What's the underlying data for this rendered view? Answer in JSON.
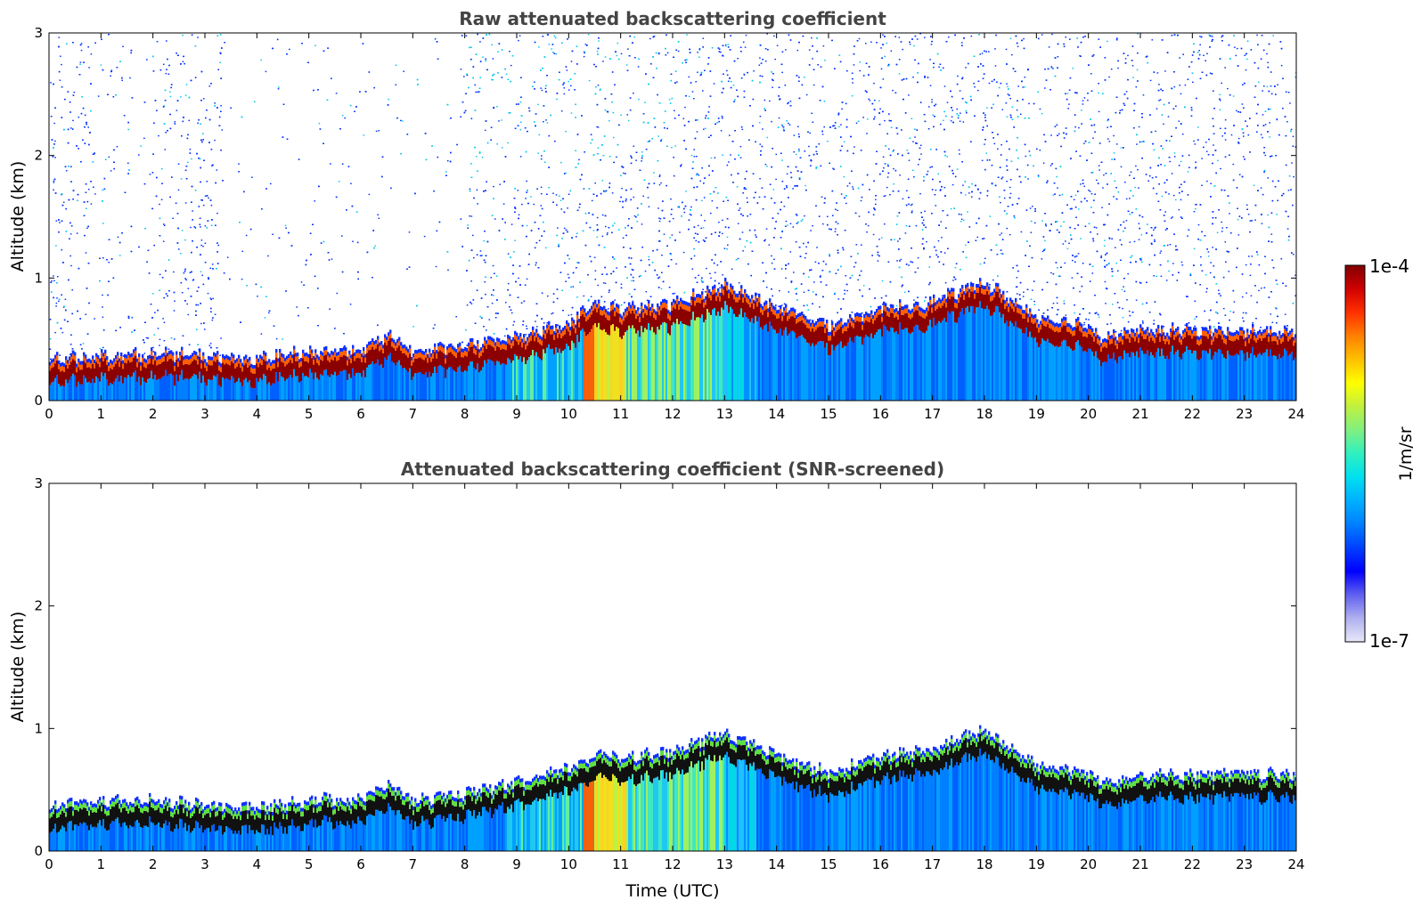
{
  "chart_data": [
    {
      "type": "heatmap",
      "title": "Raw attenuated backscattering coefficient",
      "xlabel": "",
      "ylabel": "Altitude (km)",
      "xlim": [
        0,
        24
      ],
      "ylim": [
        0,
        3
      ],
      "x_ticks": [
        "0",
        "1",
        "2",
        "3",
        "4",
        "5",
        "6",
        "7",
        "8",
        "9",
        "10",
        "11",
        "12",
        "13",
        "14",
        "15",
        "16",
        "17",
        "18",
        "19",
        "20",
        "21",
        "22",
        "23",
        "24"
      ],
      "y_ticks": [
        "0",
        "1",
        "2",
        "3"
      ],
      "layer_top_km": [
        [
          0,
          0.28
        ],
        [
          1,
          0.3
        ],
        [
          2,
          0.31
        ],
        [
          3,
          0.3
        ],
        [
          4,
          0.27
        ],
        [
          5,
          0.33
        ],
        [
          6,
          0.35
        ],
        [
          6.6,
          0.47
        ],
        [
          7,
          0.33
        ],
        [
          8,
          0.38
        ],
        [
          9,
          0.46
        ],
        [
          10,
          0.57
        ],
        [
          10.5,
          0.72
        ],
        [
          11,
          0.68
        ],
        [
          12,
          0.72
        ],
        [
          13,
          0.88
        ],
        [
          14,
          0.7
        ],
        [
          15,
          0.55
        ],
        [
          16,
          0.68
        ],
        [
          17,
          0.74
        ],
        [
          18,
          0.9
        ],
        [
          19,
          0.62
        ],
        [
          20,
          0.55
        ],
        [
          20.2,
          0.46
        ],
        [
          21,
          0.5
        ],
        [
          22,
          0.51
        ],
        [
          23,
          0.5
        ],
        [
          23.9,
          0.49
        ]
      ],
      "noise": "high"
    },
    {
      "type": "heatmap",
      "title": "Attenuated backscattering coefficient (SNR-screened)",
      "xlabel": "Time (UTC)",
      "ylabel": "Altitude (km)",
      "xlim": [
        0,
        24
      ],
      "ylim": [
        0,
        3
      ],
      "x_ticks": [
        "0",
        "1",
        "2",
        "3",
        "4",
        "5",
        "6",
        "7",
        "8",
        "9",
        "10",
        "11",
        "12",
        "13",
        "14",
        "15",
        "16",
        "17",
        "18",
        "19",
        "20",
        "21",
        "22",
        "23",
        "24"
      ],
      "y_ticks": [
        "0",
        "1",
        "2",
        "3"
      ],
      "layer_top_km": [
        [
          0,
          0.3
        ],
        [
          1,
          0.33
        ],
        [
          2,
          0.34
        ],
        [
          3,
          0.31
        ],
        [
          4,
          0.28
        ],
        [
          5,
          0.35
        ],
        [
          6,
          0.36
        ],
        [
          6.6,
          0.48
        ],
        [
          7,
          0.34
        ],
        [
          8,
          0.4
        ],
        [
          9,
          0.48
        ],
        [
          10,
          0.6
        ],
        [
          10.5,
          0.72
        ],
        [
          11,
          0.7
        ],
        [
          12,
          0.74
        ],
        [
          13,
          0.9
        ],
        [
          14,
          0.72
        ],
        [
          15,
          0.57
        ],
        [
          16,
          0.7
        ],
        [
          17,
          0.76
        ],
        [
          18,
          0.92
        ],
        [
          19,
          0.64
        ],
        [
          20,
          0.57
        ],
        [
          20.2,
          0.5
        ],
        [
          21,
          0.55
        ],
        [
          22,
          0.56
        ],
        [
          23,
          0.56
        ],
        [
          23.9,
          0.55
        ]
      ],
      "noise": "none"
    }
  ],
  "colorbar": {
    "label": "1/m/sr",
    "max_label": "1e-4",
    "min_label": "1e-7",
    "colors": [
      "#e8e8f8",
      "#b0b0f0",
      "#6060f0",
      "#0000ff",
      "#0040ff",
      "#0080ff",
      "#00b0ff",
      "#00e0f0",
      "#30f0c0",
      "#80f080",
      "#c0f040",
      "#ffff00",
      "#ffc000",
      "#ff8000",
      "#ff3000",
      "#d00000",
      "#800000"
    ]
  },
  "colors": {
    "layer_core": "#8b0000",
    "layer_core_screened": "#111111",
    "noise_blue": "#0030ff",
    "noise_cyan": "#00c8e8"
  }
}
